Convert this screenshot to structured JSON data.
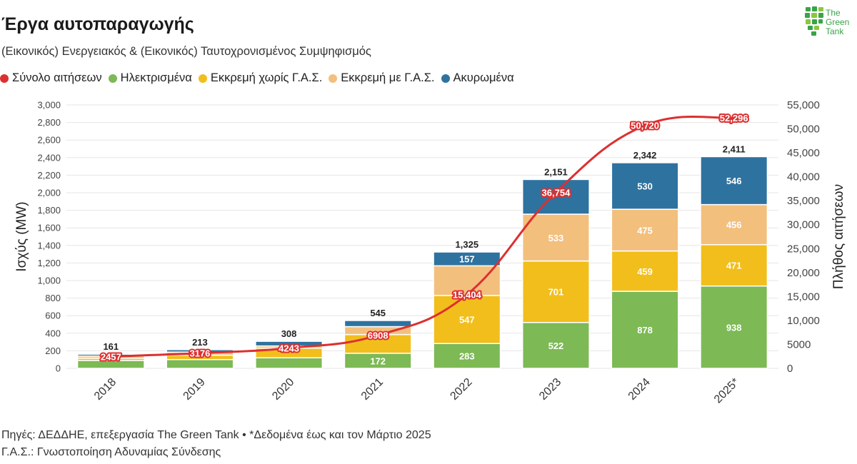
{
  "header": {
    "title": "Έργα αυτοπαραγωγής",
    "subtitle": "(Εικονικός) Ενεργειακός & (Εικονικός) Ταυτοχρονισμένος Συμψηφισμός"
  },
  "logo": {
    "line1": "The",
    "line2": "Green",
    "line3": "Tank"
  },
  "footer": {
    "line1": "Πηγές: ΔΕΔΔΗΕ, επεξεργασία The Green Tank • *Δεδομένα έως και τον Μάρτιο 2025",
    "line2": "Γ.Α.Σ.: Γνωστοποίηση Αδυναμίας Σύνδεσης"
  },
  "chart_data": {
    "type": "bar",
    "stacked": true,
    "categories": [
      "2018",
      "2019",
      "2020",
      "2021",
      "2022",
      "2023",
      "2024",
      "2025*"
    ],
    "series": [
      {
        "name": "Ηλεκτρισμένα",
        "color": "#7db955",
        "values": [
          90,
          100,
          120,
          172,
          283,
          522,
          878,
          938
        ],
        "labels": [
          "",
          "",
          "",
          "172",
          "283",
          "522",
          "878",
          "938"
        ]
      },
      {
        "name": "Εκκρεμή χωρίς Γ.Α.Σ.",
        "color": "#f2be1c",
        "values": [
          25,
          50,
          110,
          213,
          547,
          701,
          459,
          471
        ],
        "labels": [
          "",
          "",
          "",
          "",
          "547",
          "701",
          "459",
          "471"
        ]
      },
      {
        "name": "Εκκρεμή με Γ.Α.Σ.",
        "color": "#f3bf7d",
        "values": [
          25,
          35,
          25,
          90,
          338,
          533,
          475,
          456
        ],
        "labels": [
          "",
          "",
          "",
          "",
          "",
          "533",
          "475",
          "456"
        ]
      },
      {
        "name": "Ακυρωμένα",
        "color": "#2e72a0",
        "values": [
          21,
          28,
          53,
          70,
          157,
          395,
          530,
          546
        ],
        "labels": [
          "",
          "",
          "",
          "",
          "157",
          "",
          "530",
          "546"
        ]
      }
    ],
    "totals": [
      161,
      213,
      308,
      545,
      1325,
      2151,
      2342,
      2411
    ],
    "totals_labels": [
      "161",
      "213",
      "308",
      "545",
      "1,325",
      "2,151",
      "2,342",
      "2,411"
    ],
    "line": {
      "name": "Σύνολο αιτήσεων",
      "color": "#dc3030",
      "axis": "right",
      "values": [
        2457,
        3176,
        4243,
        6908,
        15404,
        36754,
        50720,
        52296
      ],
      "labels": [
        "2457",
        "3176",
        "4243",
        "6908",
        "15,404",
        "36,754",
        "50,720",
        "52,296"
      ]
    },
    "ylabel": "Ισχύς (MW)",
    "ylim": [
      0,
      3000
    ],
    "yticks": [
      0,
      200,
      400,
      600,
      800,
      1000,
      1200,
      1400,
      1600,
      1800,
      2000,
      2200,
      2400,
      2600,
      2800,
      3000
    ],
    "yticks_labels": [
      "0",
      "200",
      "400",
      "600",
      "800",
      "1,000",
      "1,200",
      "1,400",
      "1,600",
      "1,800",
      "2,000",
      "2,200",
      "2,400",
      "2,600",
      "2,800",
      "3,000"
    ],
    "y2label": "Πλήθος αιτήσεων",
    "y2lim": [
      0,
      55000
    ],
    "y2ticks": [
      0,
      5000,
      10000,
      15000,
      20000,
      25000,
      30000,
      35000,
      40000,
      45000,
      50000,
      55000
    ],
    "y2ticks_labels": [
      "0",
      "5000",
      "10,000",
      "15,000",
      "20,000",
      "25,000",
      "30,000",
      "35,000",
      "40,000",
      "45,000",
      "50,000",
      "55,000"
    ],
    "legend_position": "top-left",
    "grid": true
  }
}
